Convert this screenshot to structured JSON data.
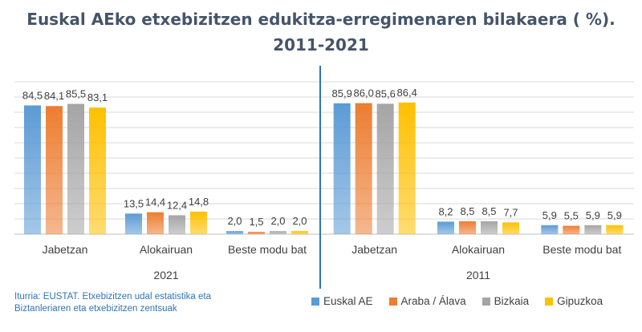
{
  "title_line1": "Euskal AEko etxebizitzen edukitza-erregimenaren bilakaera ( %).",
  "title_line2": "2011-2021",
  "source_line1": "Iturria: EUSTAT. Etxebizitzen udal estatistika eta",
  "source_line2": "Biztanleriaren eta etxebizitzen zentsuak",
  "colors": {
    "Euskal AE": "#5b9bd5",
    "Araba / Álava": "#ed7d31",
    "Bizkaia": "#a5a5a5",
    "Gipuzkoa": "#ffc000"
  },
  "chart_data": {
    "type": "bar",
    "title": "Euskal AEko etxebizitzen edukitza-erregimenaren bilakaera ( %). 2011-2021",
    "grid": true,
    "legend_position": "bottom-right",
    "ylim": [
      0,
      100
    ],
    "series_names": [
      "Euskal AE",
      "Araba / Álava",
      "Bizkaia",
      "Gipuzkoa"
    ],
    "panels": [
      {
        "year": "2021",
        "categories": [
          "Jabetzan",
          "Alokairuan",
          "Beste modu bat"
        ],
        "values": [
          [
            84.5,
            84.1,
            85.5,
            83.1
          ],
          [
            13.5,
            14.4,
            12.4,
            14.8
          ],
          [
            2.0,
            1.5,
            2.0,
            2.0
          ]
        ],
        "labels": [
          [
            "84,5",
            "84,1",
            "85,5",
            "83,1"
          ],
          [
            "13,5",
            "14,4",
            "12,4",
            "14,8"
          ],
          [
            "2,0",
            "1,5",
            "2,0",
            "2,0"
          ]
        ]
      },
      {
        "year": "2011",
        "categories": [
          "Jabetzan",
          "Alokairuan",
          "Beste modu bat"
        ],
        "values": [
          [
            85.9,
            86.0,
            85.6,
            86.4
          ],
          [
            8.2,
            8.5,
            8.5,
            7.7
          ],
          [
            5.9,
            5.5,
            5.9,
            5.9
          ]
        ],
        "labels": [
          [
            "85,9",
            "86,0",
            "85,6",
            "86,4"
          ],
          [
            "8,2",
            "8,5",
            "8,5",
            "7,7"
          ],
          [
            "5,9",
            "5,5",
            "5,9",
            "5,9"
          ]
        ]
      }
    ]
  }
}
